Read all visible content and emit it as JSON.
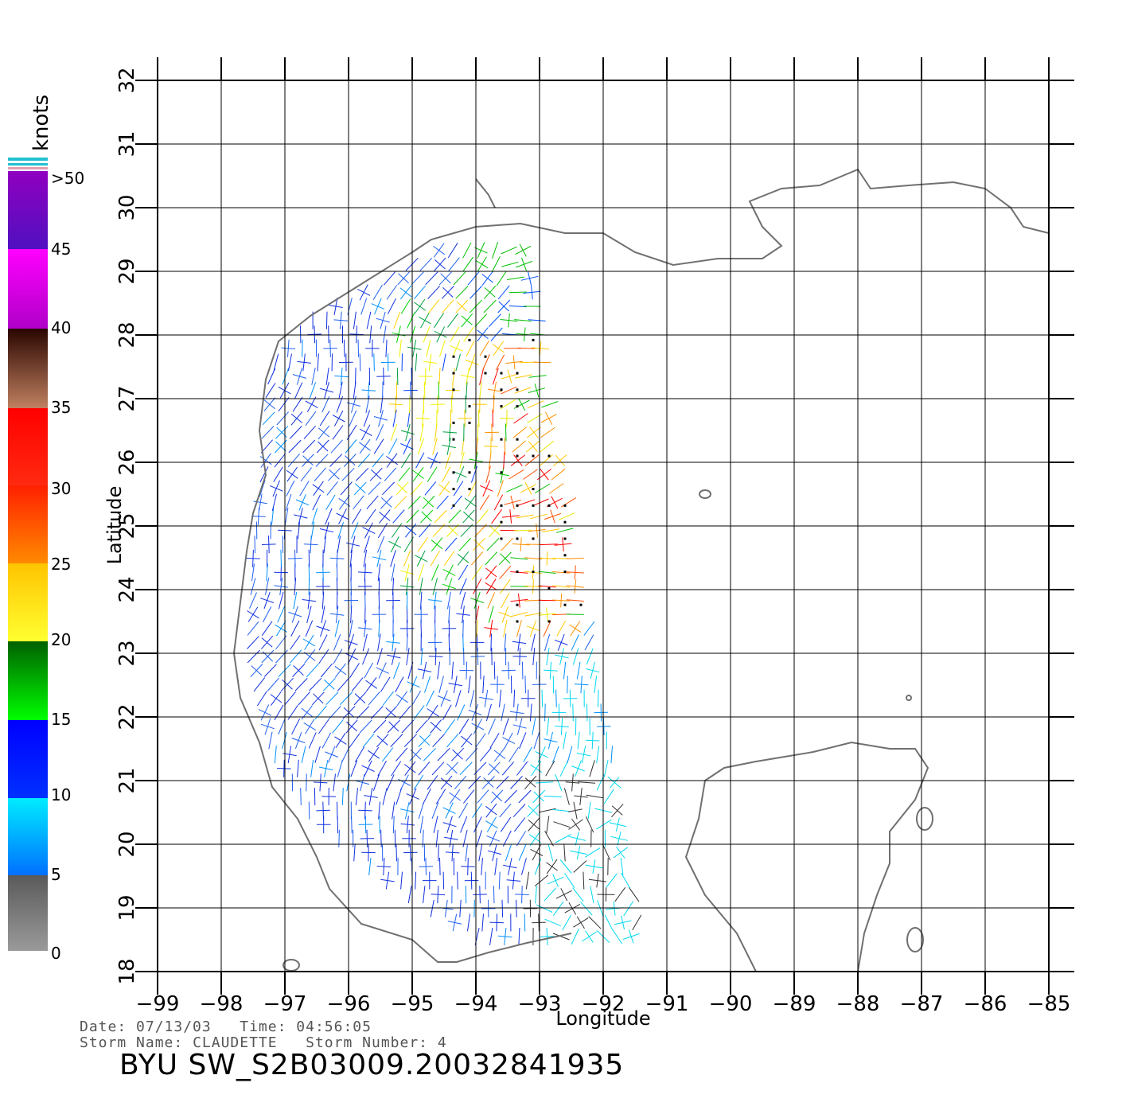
{
  "axes": {
    "xlabel": "Longitude",
    "ylabel": "Latitude",
    "lon_range": [
      -99,
      -85
    ],
    "lat_range": [
      18,
      32
    ],
    "lon_ticks": [
      "−99",
      "−98",
      "−97",
      "−96",
      "−95",
      "−94",
      "−93",
      "−92",
      "−91",
      "−90",
      "−89",
      "−88",
      "−87",
      "−86",
      "−85"
    ],
    "lat_ticks": [
      "18",
      "19",
      "20",
      "21",
      "22",
      "23",
      "24",
      "25",
      "26",
      "27",
      "28",
      "29",
      "30",
      "31",
      "32"
    ],
    "grid": true
  },
  "legend": {
    "unit": "knots",
    "labels": [
      "0",
      "5",
      "10",
      "15",
      "20",
      "25",
      "30",
      "35",
      "40",
      "45",
      ">50"
    ]
  },
  "footer": {
    "date_label": "Date:",
    "date": "07/13/03",
    "time_label": "Time:",
    "time": "04:56:05",
    "storm_name_label": "Storm Name:",
    "storm_name": "CLAUDETTE",
    "storm_number_label": "Storm Number:",
    "storm_number": "4",
    "product_title": "BYU SW_S2B03009.20032841935"
  },
  "colors": {
    "grid": "#000000",
    "coastline": "#707070",
    "scale": [
      "#7a7a7a",
      "#505050",
      "#2a2a2a",
      "#00e8ff",
      "#0090ff",
      "#0010ff",
      "#006000",
      "#00ff00",
      "#ffff00",
      "#ffc400",
      "#ff7a00",
      "#ff3000",
      "#ff0000",
      "#c07050",
      "#3a0a00",
      "#ff00ff",
      "#a000d0",
      "#5010c0"
    ]
  }
}
